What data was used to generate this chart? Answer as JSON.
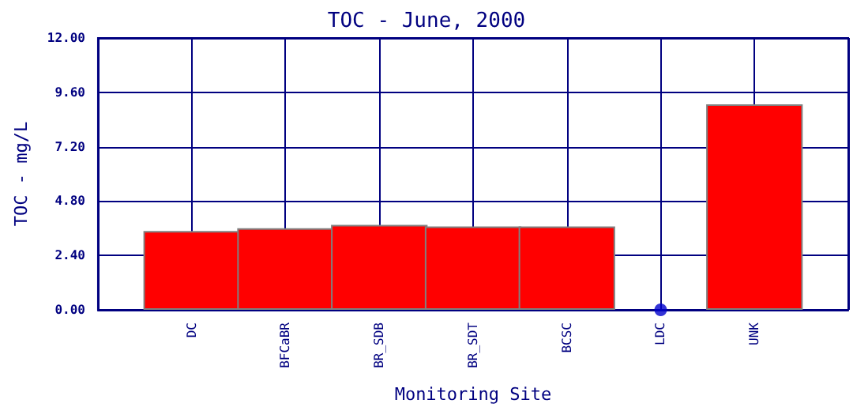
{
  "chart_data": {
    "type": "bar",
    "title": "TOC - June, 2000",
    "xlabel": "Monitoring Site",
    "ylabel": "TOC - mg/L",
    "categories": [
      "DC",
      "BFCaBR",
      "BR_SDB",
      "BR_SDT",
      "BCSC",
      "LDC",
      "UNK"
    ],
    "series": [
      {
        "color": "#ff0000",
        "values": [
          3.48,
          3.6,
          3.75,
          3.68,
          3.68,
          null,
          9.07
        ]
      },
      {
        "type": "scatter",
        "color": "#0000cc",
        "x": [
          "LDC"
        ],
        "values": [
          0
        ]
      }
    ],
    "ylim": [
      0,
      12
    ],
    "yticks": [
      {
        "value": 0,
        "label": "0.00"
      },
      {
        "value": 2.4,
        "label": "2.40"
      },
      {
        "value": 4.8,
        "label": "4.80"
      },
      {
        "value": 7.2,
        "label": "7.20"
      },
      {
        "value": 9.6,
        "label": "9.60"
      },
      {
        "value": 12,
        "label": "12.00"
      }
    ],
    "grid": true,
    "marker": "circle"
  }
}
